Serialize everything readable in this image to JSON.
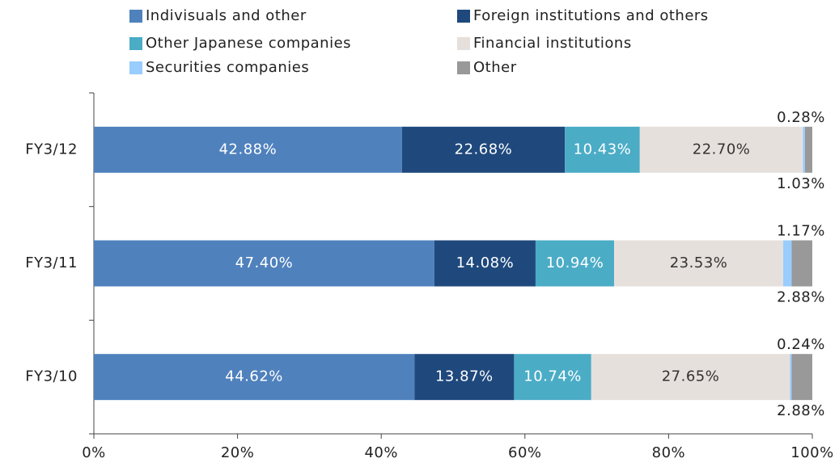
{
  "chart_data": {
    "type": "stacked_barh",
    "categories": [
      "FY3/12",
      "FY3/11",
      "FY3/10"
    ],
    "series": [
      {
        "name": "Indivisuals and other",
        "color": "#4f81bd",
        "values": [
          42.88,
          47.4,
          44.62
        ],
        "value_labels": [
          "42.88%",
          "47.40%",
          "44.62%"
        ]
      },
      {
        "name": "Foreign institutions and others",
        "color": "#1f497d",
        "values": [
          22.68,
          14.08,
          13.87
        ],
        "value_labels": [
          "22.68%",
          "14.08%",
          "13.87%"
        ]
      },
      {
        "name": "Other Japanese companies",
        "color": "#4bacc6",
        "values": [
          10.43,
          10.94,
          10.74
        ],
        "value_labels": [
          "10.43%",
          "10.94%",
          "10.74%"
        ]
      },
      {
        "name": "Financial institutions",
        "color": "#e6e0dc",
        "values": [
          22.7,
          23.53,
          27.65
        ],
        "value_labels": [
          "22.70%",
          "23.53%",
          "27.65%"
        ]
      },
      {
        "name": "Securities companies",
        "color": "#99ccff",
        "values": [
          0.28,
          1.17,
          0.24
        ],
        "value_labels": [
          "0.28%",
          "1.17%",
          "0.24%"
        ]
      },
      {
        "name": "Other",
        "color": "#999999",
        "values": [
          1.03,
          2.88,
          2.88
        ],
        "value_labels": [
          "1.03%",
          "2.88%",
          "2.88%"
        ]
      }
    ],
    "xlim": [
      0,
      100
    ],
    "xticks": [
      {
        "value": 0,
        "label": "0%"
      },
      {
        "value": 20,
        "label": "20%"
      },
      {
        "value": 40,
        "label": "40%"
      },
      {
        "value": 60,
        "label": "60%"
      },
      {
        "value": 80,
        "label": "80%"
      },
      {
        "value": 100,
        "label": "100%"
      }
    ],
    "legend": "top"
  }
}
